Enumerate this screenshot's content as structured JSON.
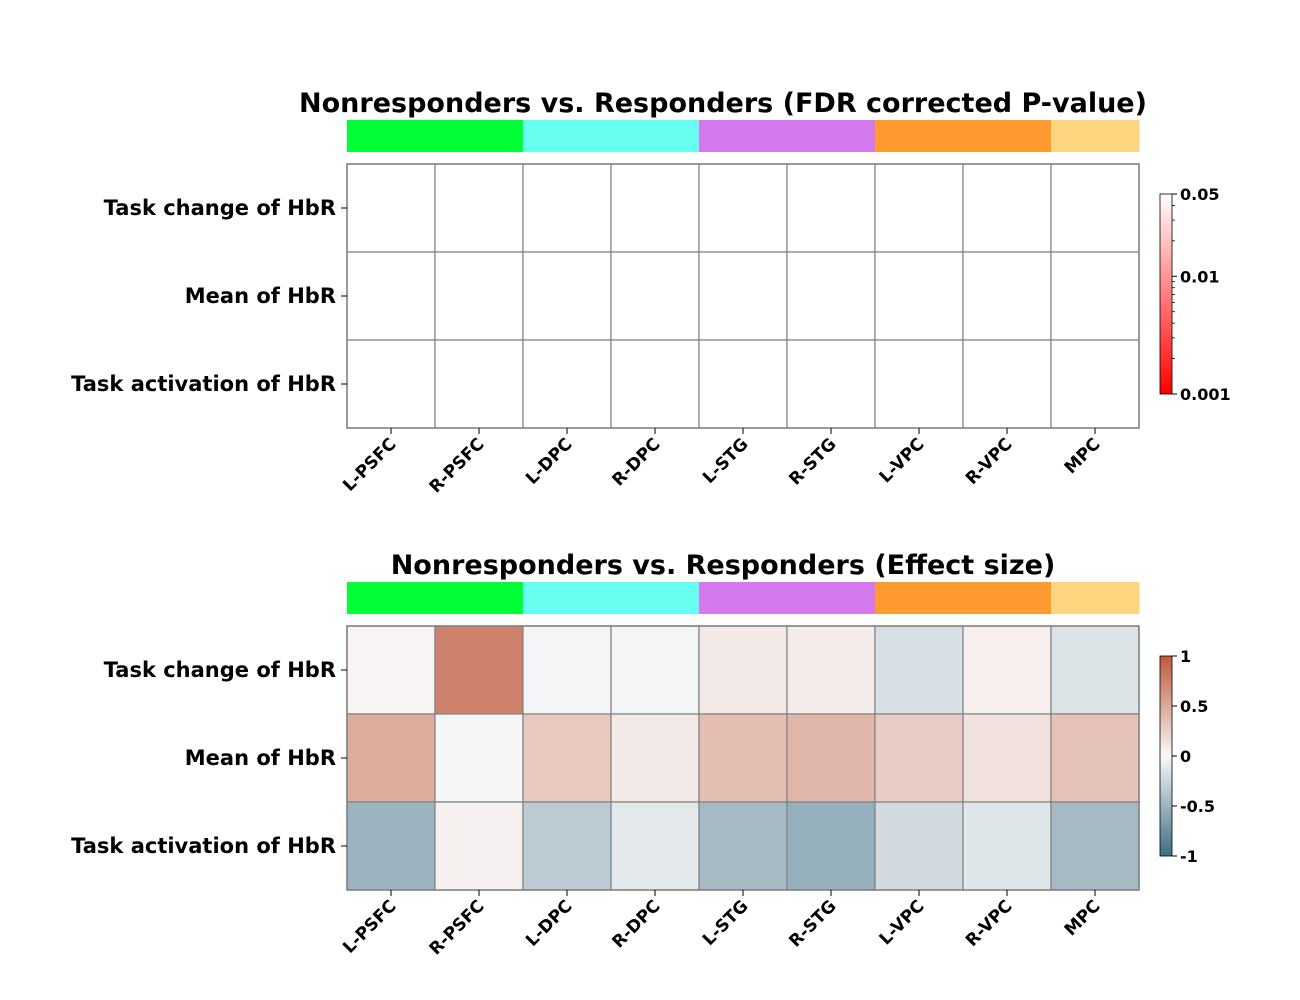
{
  "chart_data": [
    {
      "type": "heatmap",
      "title": "Nonresponders vs. Responders (FDR corrected P-value)",
      "rows": [
        "Task change of HbR",
        "Mean of HbR",
        "Task activation of HbR"
      ],
      "columns": [
        "L-PSFC",
        "R-PSFC",
        "L-DPC",
        "R-DPC",
        "L-STG",
        "R-STG",
        "L-VPC",
        "R-VPC",
        "MPC"
      ],
      "region_colors": [
        "#00ff37",
        "#66fff0",
        "#d47aee",
        "#ff9a2e",
        "#ffd580",
        "",
        "",
        "",
        ""
      ],
      "region_groups": [
        {
          "color": "#00ff37",
          "columns": [
            "L-PSFC",
            "R-PSFC"
          ]
        },
        {
          "color": "#66fff0",
          "columns": [
            "L-DPC",
            "R-DPC"
          ]
        },
        {
          "color": "#d47aee",
          "columns": [
            "L-STG",
            "R-STG"
          ]
        },
        {
          "color": "#ff9a2e",
          "columns": [
            "L-VPC",
            "R-VPC"
          ]
        },
        {
          "color": "#ffd580",
          "columns": [
            "MPC"
          ]
        }
      ],
      "values": [
        [
          null,
          null,
          null,
          null,
          null,
          null,
          null,
          null,
          null
        ],
        [
          null,
          null,
          null,
          null,
          null,
          null,
          null,
          null,
          null
        ],
        [
          null,
          null,
          null,
          null,
          null,
          null,
          null,
          null,
          null
        ]
      ],
      "colorbar": {
        "scale": "log",
        "ticks": [
          {
            "value": 0.05,
            "label": "0.05"
          },
          {
            "value": 0.01,
            "label": "0.01"
          },
          {
            "value": 0.001,
            "label": "0.001"
          }
        ],
        "color_low": "#ff0000",
        "color_high": "#ffffff"
      }
    },
    {
      "type": "heatmap",
      "title": "Nonresponders vs. Responders (Effect size)",
      "rows": [
        "Task change of HbR",
        "Mean of HbR",
        "Task activation of HbR"
      ],
      "columns": [
        "L-PSFC",
        "R-PSFC",
        "L-DPC",
        "R-DPC",
        "L-STG",
        "R-STG",
        "L-VPC",
        "R-VPC",
        "MPC"
      ],
      "region_groups": [
        {
          "color": "#00ff37",
          "columns": [
            "L-PSFC",
            "R-PSFC"
          ]
        },
        {
          "color": "#66fff0",
          "columns": [
            "L-DPC",
            "R-DPC"
          ]
        },
        {
          "color": "#d47aee",
          "columns": [
            "L-STG",
            "R-STG"
          ]
        },
        {
          "color": "#ff9a2e",
          "columns": [
            "L-VPC",
            "R-VPC"
          ]
        },
        {
          "color": "#ffd580",
          "columns": [
            "MPC"
          ]
        }
      ],
      "values": [
        [
          0.03,
          0.75,
          -0.03,
          -0.03,
          0.1,
          0.08,
          -0.18,
          0.06,
          -0.15
        ],
        [
          0.48,
          -0.02,
          0.3,
          0.1,
          0.37,
          0.42,
          0.28,
          0.15,
          0.34
        ],
        [
          -0.5,
          0.05,
          -0.33,
          -0.12,
          -0.45,
          -0.53,
          -0.22,
          -0.14,
          -0.45
        ]
      ],
      "colorbar": {
        "scale": "linear",
        "range": [
          -1,
          1
        ],
        "ticks": [
          {
            "value": 1,
            "label": "1"
          },
          {
            "value": 0.5,
            "label": "0.5"
          },
          {
            "value": 0,
            "label": "0"
          },
          {
            "value": -0.5,
            "label": "-0.5"
          },
          {
            "value": -1,
            "label": "-1"
          }
        ],
        "color_neg": "#3e6e85",
        "color_mid": "#f9f9f9",
        "color_pos": "#bf5a3c"
      }
    }
  ]
}
